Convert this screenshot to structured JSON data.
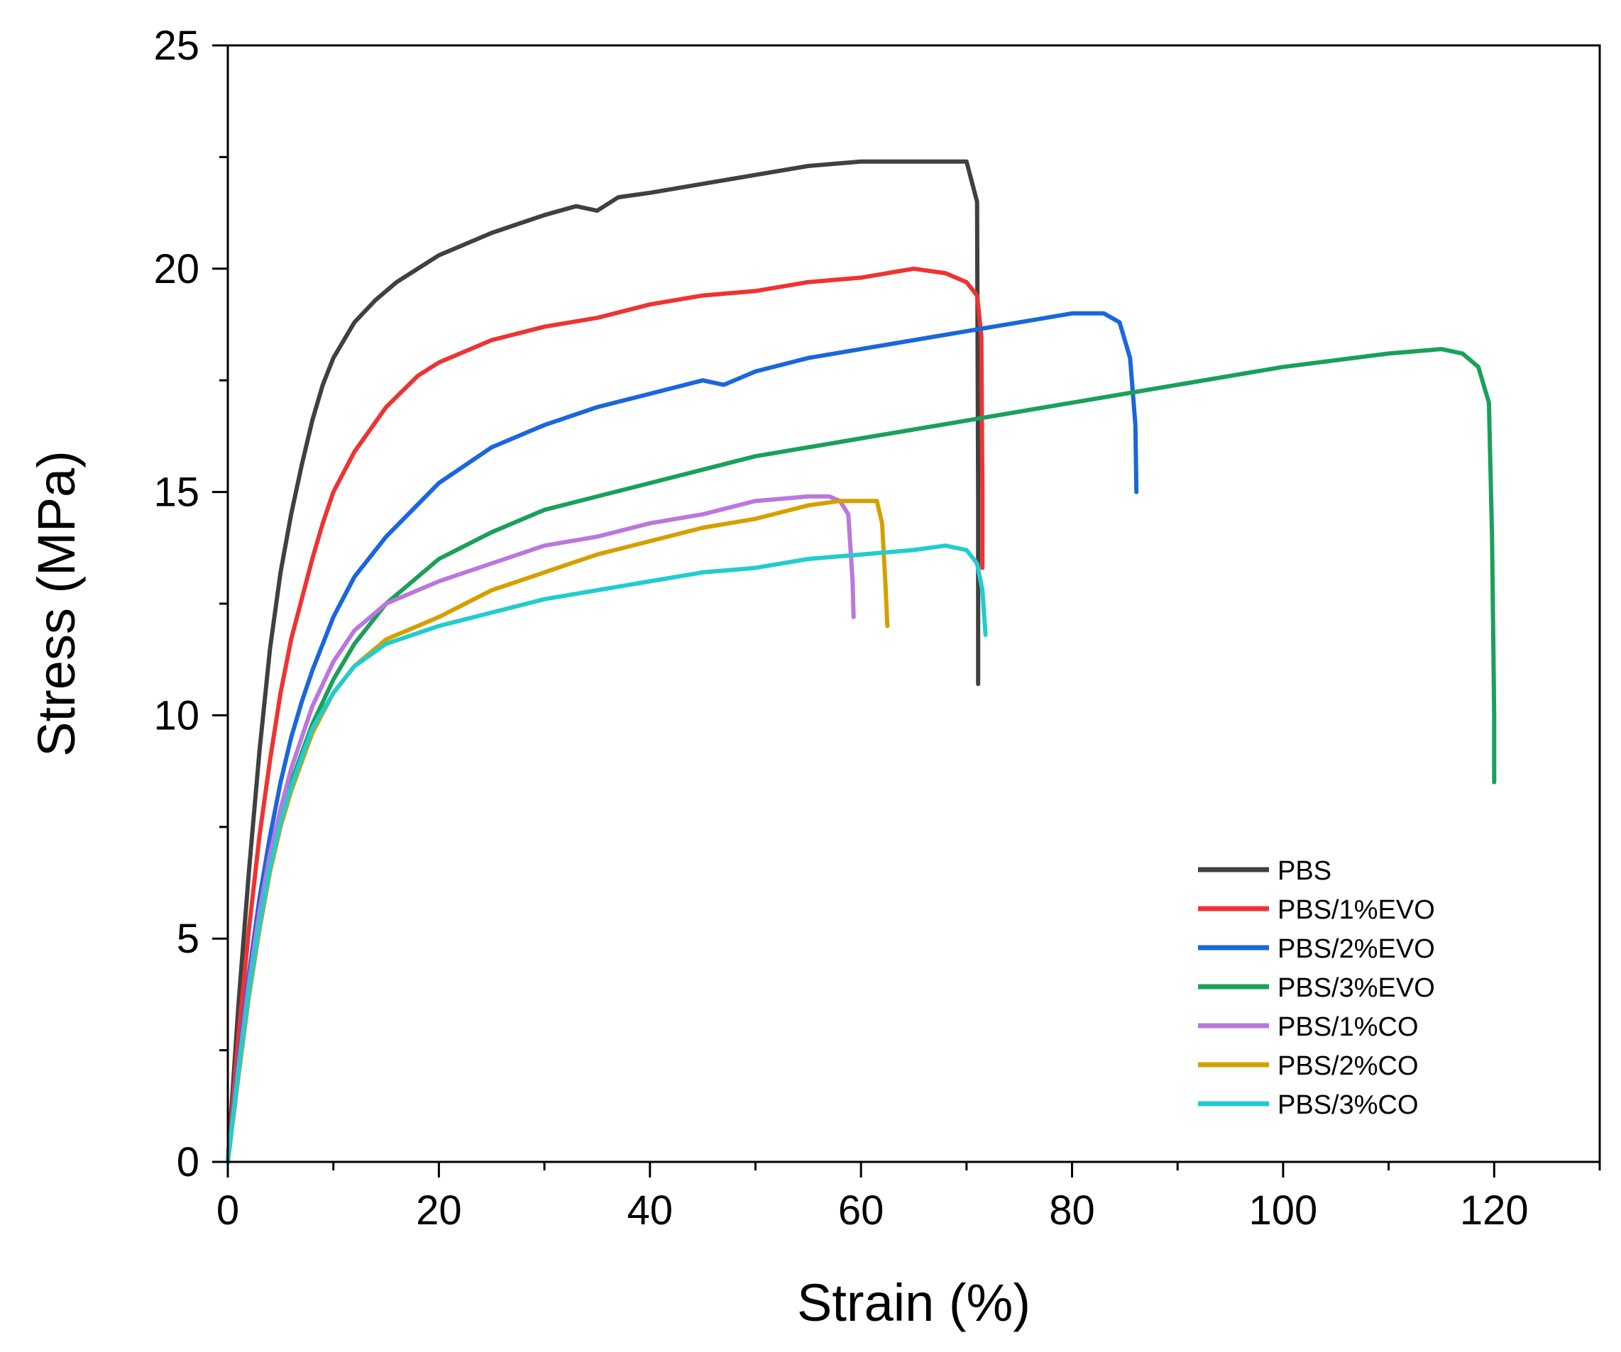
{
  "chart_data": {
    "type": "line",
    "title": "",
    "xlabel": "Strain (%)",
    "ylabel": "Stress (MPa)",
    "xlim": [
      0,
      130
    ],
    "ylim": [
      0,
      25
    ],
    "x_ticks": [
      0,
      20,
      40,
      60,
      80,
      100,
      120
    ],
    "x_tick_labels": [
      "0",
      "20",
      "40",
      "60",
      "80",
      "100",
      "120"
    ],
    "y_ticks": [
      0,
      5,
      10,
      15,
      20,
      25
    ],
    "y_tick_labels": [
      "0",
      "5",
      "10",
      "15",
      "20",
      "25"
    ],
    "grid": false,
    "legend_position": "bottom-right",
    "series": [
      {
        "name": "PBS",
        "color": "#404040",
        "x": [
          0,
          1,
          2,
          3,
          4,
          5,
          6,
          7,
          8,
          9,
          10,
          12,
          14,
          16,
          18,
          20,
          25,
          30,
          33,
          35,
          37,
          40,
          45,
          50,
          55,
          60,
          65,
          68,
          70,
          71,
          71.1,
          71.1
        ],
        "y": [
          0,
          3.5,
          6.5,
          9.2,
          11.5,
          13.2,
          14.5,
          15.6,
          16.6,
          17.4,
          18.0,
          18.8,
          19.3,
          19.7,
          20.0,
          20.3,
          20.8,
          21.2,
          21.4,
          21.3,
          21.6,
          21.7,
          21.9,
          22.1,
          22.3,
          22.4,
          22.4,
          22.4,
          22.4,
          21.5,
          15.0,
          10.7
        ]
      },
      {
        "name": "PBS/1%EVO",
        "color": "#ee3333",
        "x": [
          0,
          1,
          2,
          3,
          4,
          5,
          6,
          7,
          8,
          9,
          10,
          12,
          15,
          18,
          20,
          25,
          30,
          35,
          40,
          45,
          50,
          55,
          60,
          65,
          68,
          70,
          71,
          71.4,
          71.5,
          71.5
        ],
        "y": [
          0,
          2.8,
          5.2,
          7.3,
          9.0,
          10.5,
          11.7,
          12.6,
          13.5,
          14.3,
          15.0,
          15.9,
          16.9,
          17.6,
          17.9,
          18.4,
          18.7,
          18.9,
          19.2,
          19.4,
          19.5,
          19.7,
          19.8,
          20.0,
          19.9,
          19.7,
          19.4,
          18.5,
          15.0,
          13.3
        ]
      },
      {
        "name": "PBS/2%EVO",
        "color": "#1a66dd",
        "x": [
          0,
          1,
          2,
          3,
          4,
          5,
          6,
          7,
          8,
          10,
          12,
          15,
          20,
          25,
          30,
          35,
          40,
          45,
          47,
          50,
          55,
          60,
          65,
          70,
          75,
          80,
          83,
          84.5,
          85.5,
          86,
          86.1
        ],
        "y": [
          0,
          2.2,
          4.2,
          5.9,
          7.3,
          8.5,
          9.5,
          10.3,
          11.0,
          12.2,
          13.1,
          14.0,
          15.2,
          16.0,
          16.5,
          16.9,
          17.2,
          17.5,
          17.4,
          17.7,
          18.0,
          18.2,
          18.4,
          18.6,
          18.8,
          19.0,
          19.0,
          18.8,
          18.0,
          16.5,
          15.0
        ]
      },
      {
        "name": "PBS/3%EVO",
        "color": "#1aa05a",
        "x": [
          0,
          1,
          2,
          3,
          4,
          5,
          6,
          8,
          10,
          12,
          15,
          20,
          25,
          30,
          35,
          40,
          50,
          60,
          70,
          80,
          90,
          100,
          110,
          115,
          117,
          118.5,
          119.5,
          119.8,
          120,
          120
        ],
        "y": [
          0,
          2.0,
          3.8,
          5.3,
          6.6,
          7.6,
          8.5,
          9.8,
          10.8,
          11.6,
          12.5,
          13.5,
          14.1,
          14.6,
          14.9,
          15.2,
          15.8,
          16.2,
          16.6,
          17.0,
          17.4,
          17.8,
          18.1,
          18.2,
          18.1,
          17.8,
          17.0,
          14.0,
          10.0,
          8.5
        ]
      },
      {
        "name": "PBS/1%CO",
        "color": "#bb77dd",
        "x": [
          0,
          1,
          2,
          3,
          4,
          5,
          6,
          8,
          10,
          12,
          15,
          20,
          25,
          30,
          35,
          40,
          45,
          50,
          55,
          57,
          58,
          58.8,
          59.2,
          59.3
        ],
        "y": [
          0,
          2.1,
          4.0,
          5.6,
          6.9,
          7.9,
          8.8,
          10.2,
          11.2,
          11.9,
          12.5,
          13.0,
          13.4,
          13.8,
          14.0,
          14.3,
          14.5,
          14.8,
          14.9,
          14.9,
          14.8,
          14.5,
          13.0,
          12.2
        ]
      },
      {
        "name": "PBS/2%CO",
        "color": "#d4a000",
        "x": [
          0,
          1,
          2,
          3,
          4,
          5,
          6,
          8,
          10,
          12,
          15,
          20,
          25,
          30,
          35,
          40,
          45,
          50,
          55,
          58,
          60,
          61.5,
          62,
          62.3,
          62.5
        ],
        "y": [
          0,
          1.9,
          3.7,
          5.2,
          6.5,
          7.5,
          8.3,
          9.6,
          10.5,
          11.1,
          11.7,
          12.2,
          12.8,
          13.2,
          13.6,
          13.9,
          14.2,
          14.4,
          14.7,
          14.8,
          14.8,
          14.8,
          14.3,
          13.0,
          12.0
        ]
      },
      {
        "name": "PBS/3%CO",
        "color": "#22cccc",
        "x": [
          0,
          1,
          2,
          3,
          4,
          5,
          6,
          8,
          10,
          12,
          15,
          20,
          25,
          30,
          35,
          40,
          45,
          50,
          55,
          60,
          65,
          68,
          70,
          71,
          71.5,
          71.8
        ],
        "y": [
          0,
          2.0,
          3.8,
          5.3,
          6.6,
          7.6,
          8.4,
          9.7,
          10.5,
          11.1,
          11.6,
          12.0,
          12.3,
          12.6,
          12.8,
          13.0,
          13.2,
          13.3,
          13.5,
          13.6,
          13.7,
          13.8,
          13.7,
          13.4,
          12.8,
          11.8
        ]
      }
    ]
  }
}
